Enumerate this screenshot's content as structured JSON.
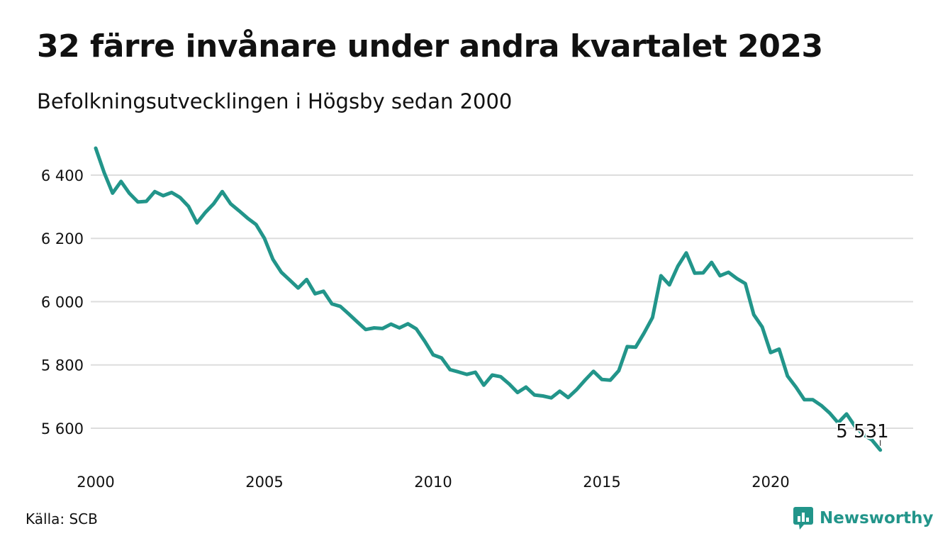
{
  "title": "32 färre invånare under andra kvartalet 2023",
  "subtitle": "Befolkningsutvecklingen i Högsby sedan 2000",
  "source": "Källa: SCB",
  "brand": {
    "name": "Newsworthy",
    "icon": "newsworthy-logo-icon"
  },
  "colors": {
    "line": "#22958a",
    "grid": "#dddddd",
    "text": "#111111"
  },
  "chart_data": {
    "type": "line",
    "title": "32 färre invånare under andra kvartalet 2023",
    "subtitle": "Befolkningsutvecklingen i Högsby sedan 2000",
    "xlabel": "",
    "ylabel": "",
    "xlim": [
      2000,
      2024
    ],
    "ylim": [
      5500,
      6500
    ],
    "x_ticks": [
      2000,
      2005,
      2010,
      2015,
      2020
    ],
    "x_tick_labels": [
      "2000",
      "2005",
      "2010",
      "2015",
      "2020"
    ],
    "y_ticks": [
      5600,
      5800,
      6000,
      6200,
      6400
    ],
    "y_tick_labels": [
      "5 600",
      "5 800",
      "6 000",
      "6 200",
      "6 400"
    ],
    "grid": true,
    "x": [
      2000.0,
      2000.25,
      2000.5,
      2000.75,
      2001.0,
      2001.25,
      2001.5,
      2001.75,
      2002.0,
      2002.25,
      2002.5,
      2002.75,
      2003.0,
      2003.25,
      2003.5,
      2003.75,
      2004.0,
      2004.25,
      2004.5,
      2004.75,
      2005.0,
      2005.25,
      2005.5,
      2005.75,
      2006.0,
      2006.25,
      2006.5,
      2006.75,
      2007.0,
      2007.25,
      2007.5,
      2007.75,
      2008.0,
      2008.25,
      2008.5,
      2008.75,
      2009.0,
      2009.25,
      2009.5,
      2009.75,
      2010.0,
      2010.25,
      2010.5,
      2010.75,
      2011.0,
      2011.25,
      2011.5,
      2011.75,
      2012.0,
      2012.25,
      2012.5,
      2012.75,
      2013.0,
      2013.25,
      2013.5,
      2013.75,
      2014.0,
      2014.25,
      2014.5,
      2014.75,
      2015.0,
      2015.25,
      2015.5,
      2015.75,
      2016.0,
      2016.25,
      2016.5,
      2016.75,
      2017.0,
      2017.25,
      2017.5,
      2017.75,
      2018.0,
      2018.25,
      2018.5,
      2018.75,
      2019.0,
      2019.25,
      2019.5,
      2019.75,
      2020.0,
      2020.25,
      2020.5,
      2020.75,
      2021.0,
      2021.25,
      2021.5,
      2021.75,
      2022.0,
      2022.25,
      2022.5,
      2022.75,
      2023.0,
      2023.25
    ],
    "series": [
      {
        "values": [
          6485,
          6408,
          6343,
          6380,
          6342,
          6315,
          6317,
          6348,
          6335,
          6345,
          6329,
          6301,
          6249,
          6282,
          6310,
          6348,
          6309,
          6287,
          6264,
          6244,
          6200,
          6134,
          6093,
          6068,
          6043,
          6070,
          6025,
          6033,
          5993,
          5985,
          5961,
          5936,
          5912,
          5917,
          5915,
          5929,
          5917,
          5930,
          5914,
          5875,
          5832,
          5822,
          5785,
          5778,
          5770,
          5777,
          5736,
          5768,
          5763,
          5740,
          5713,
          5730,
          5705,
          5702,
          5696,
          5717,
          5697,
          5722,
          5752,
          5780,
          5754,
          5752,
          5782,
          5858,
          5856,
          5901,
          5950,
          6082,
          6053,
          6112,
          6154,
          6090,
          6091,
          6124,
          6082,
          6093,
          6073,
          6057,
          5959,
          5920,
          5839,
          5850,
          5765,
          5730,
          5690,
          5690,
          5672,
          5648,
          5617,
          5645,
          5606,
          5580,
          5563,
          5531
        ]
      }
    ],
    "annotation": {
      "x": 2023.25,
      "y": 5531,
      "label": "5 531"
    }
  }
}
